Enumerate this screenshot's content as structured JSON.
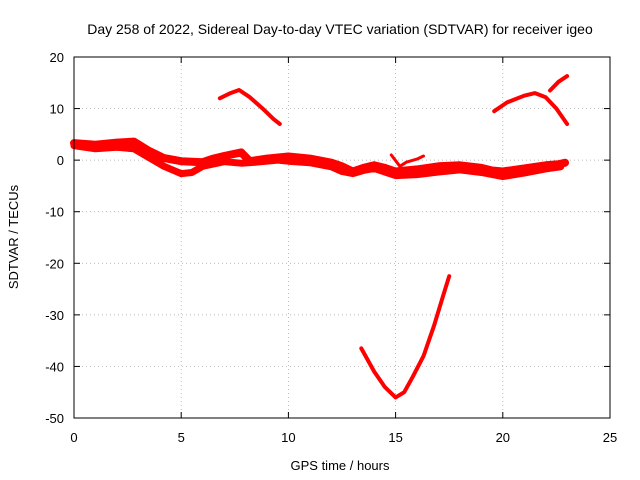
{
  "chart_data": {
    "type": "line",
    "title": "Day 258 of 2022, Sidereal Day-to-day VTEC variation (SDTVAR) for receiver igeo",
    "xlabel": "GPS time / hours",
    "ylabel": "SDTVAR / TECUs",
    "xlim": [
      0,
      25
    ],
    "ylim": [
      -50,
      20
    ],
    "xticks": [
      "0",
      "5",
      "10",
      "15",
      "20",
      "25"
    ],
    "yticks": [
      "20",
      "10",
      "0",
      "-10",
      "-20",
      "-30",
      "-40",
      "-50"
    ],
    "grid": true,
    "color": "#ff0000",
    "series": [
      {
        "name": "main-track-upper",
        "width": 8,
        "points": [
          [
            0,
            3.3
          ],
          [
            1,
            3
          ],
          [
            2,
            3.4
          ],
          [
            2.8,
            3.6
          ],
          [
            3.5,
            1.8
          ],
          [
            4.2,
            0.4
          ],
          [
            5,
            -0.2
          ],
          [
            6,
            -0.4
          ],
          [
            6.5,
            0.3
          ],
          [
            7,
            0.8
          ],
          [
            7.8,
            1.5
          ],
          [
            8.2,
            -0.2
          ],
          [
            9,
            0.3
          ],
          [
            10,
            0.7
          ],
          [
            11,
            0.3
          ],
          [
            12,
            -0.5
          ],
          [
            12.5,
            -1.2
          ],
          [
            13,
            -2.2
          ],
          [
            13.5,
            -1.5
          ],
          [
            14,
            -1
          ],
          [
            14.5,
            -1.5
          ],
          [
            15,
            -2.2
          ],
          [
            16,
            -1.8
          ],
          [
            17,
            -1.2
          ],
          [
            18,
            -1
          ],
          [
            19,
            -1.5
          ],
          [
            19.5,
            -2
          ],
          [
            20,
            -2.2
          ],
          [
            21,
            -1.6
          ],
          [
            22,
            -1
          ],
          [
            22.6,
            -0.8
          ],
          [
            22.9,
            -0.5
          ]
        ]
      },
      {
        "name": "main-track-lower",
        "width": 7,
        "points": [
          [
            0,
            2.8
          ],
          [
            1,
            2.2
          ],
          [
            2,
            2.5
          ],
          [
            2.8,
            2.2
          ],
          [
            3.5,
            0.5
          ],
          [
            4.2,
            -1.2
          ],
          [
            5,
            -2.6
          ],
          [
            5.5,
            -2.4
          ],
          [
            6,
            -1.2
          ],
          [
            7,
            -0.3
          ],
          [
            7.8,
            -0.6
          ],
          [
            8.5,
            -0.4
          ],
          [
            9.5,
            0
          ],
          [
            10,
            -0.2
          ],
          [
            11,
            -0.5
          ],
          [
            12,
            -1.3
          ],
          [
            12.5,
            -2.2
          ],
          [
            13,
            -2.6
          ],
          [
            13.5,
            -2
          ],
          [
            14,
            -1.6
          ],
          [
            14.5,
            -2.3
          ],
          [
            15,
            -3
          ],
          [
            16,
            -2.8
          ],
          [
            17,
            -2.3
          ],
          [
            18,
            -1.9
          ],
          [
            19,
            -2.4
          ],
          [
            20,
            -3.2
          ],
          [
            21,
            -2.5
          ],
          [
            22,
            -1.7
          ],
          [
            22.7,
            -1.3
          ]
        ]
      },
      {
        "name": "segment-morning-high",
        "width": 4,
        "points": [
          [
            6.8,
            12
          ],
          [
            7.3,
            13
          ],
          [
            7.7,
            13.6
          ],
          [
            8.2,
            12.2
          ],
          [
            8.8,
            10
          ],
          [
            9.3,
            8
          ],
          [
            9.6,
            7
          ]
        ]
      },
      {
        "name": "segment-afternoon-dip",
        "width": 4,
        "points": [
          [
            13.4,
            -36.5
          ],
          [
            14,
            -41
          ],
          [
            14.5,
            -44
          ],
          [
            15,
            -46
          ],
          [
            15.4,
            -45
          ],
          [
            15.8,
            -42
          ],
          [
            16.3,
            -38
          ],
          [
            16.8,
            -32
          ],
          [
            17.2,
            -26.5
          ],
          [
            17.5,
            -22.5
          ]
        ]
      },
      {
        "name": "segment-midday-spike",
        "width": 3,
        "points": [
          [
            14.8,
            1
          ],
          [
            15.2,
            -1.2
          ],
          [
            15.5,
            -0.4
          ],
          [
            16,
            0.2
          ],
          [
            16.3,
            0.8
          ]
        ]
      },
      {
        "name": "segment-evening-high",
        "width": 4,
        "points": [
          [
            19.6,
            9.5
          ],
          [
            20.2,
            11.2
          ],
          [
            21,
            12.5
          ],
          [
            21.5,
            13
          ],
          [
            22,
            12.2
          ],
          [
            22.5,
            10
          ],
          [
            23,
            7
          ]
        ]
      },
      {
        "name": "segment-evening-peak",
        "width": 4,
        "points": [
          [
            22.2,
            13.5
          ],
          [
            22.6,
            15.2
          ],
          [
            23,
            16.3
          ]
        ]
      }
    ]
  }
}
